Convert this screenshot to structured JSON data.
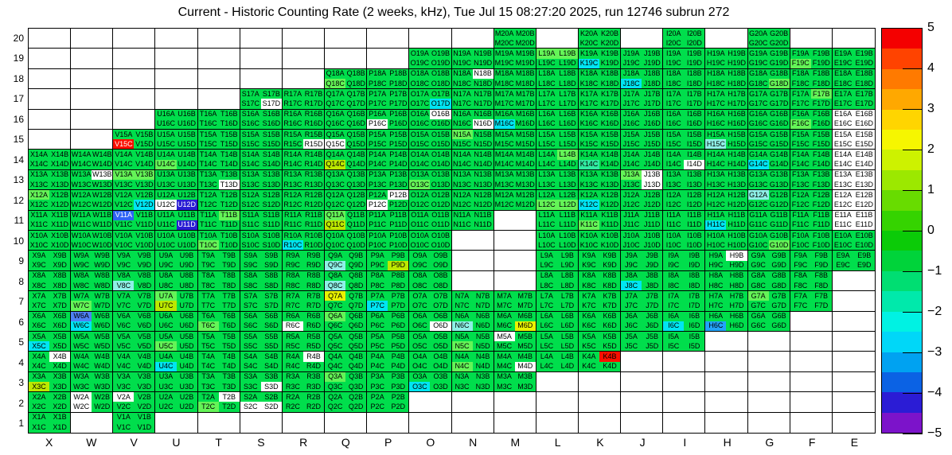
{
  "title": "Current - Historic Counting Rate (2 weeks, kHz), Tue Jul 15 08:27:20 2025, run 12746 subrun 272",
  "palette": {
    "g": "#00de4c",
    "lg": "#64f457",
    "yg": "#bce800",
    "y": "#eaf200",
    "mint": "#30eaa2",
    "lcy": "#8df0e6",
    "cy": "#00e5f2",
    "lbl": "#22a3fb",
    "bl": "#2f64f5",
    "bl2": "#4e80f5",
    "nv": "#2a1ed4",
    "red": "#fb0f00",
    "wh": "#ffffff"
  },
  "colorbar": {
    "bands": [
      "#f40000",
      "#ff4300",
      "#ff7a00",
      "#ffa800",
      "#ffd500",
      "#f6f600",
      "#cdf200",
      "#9ce800",
      "#68dc00",
      "#35d300",
      "#0bcb08",
      "#00d33a",
      "#00de72",
      "#00e9ab",
      "#00f2e3",
      "#00d7f8",
      "#00a2f1",
      "#0b62e4",
      "#2b1cd5",
      "#7c13ca"
    ],
    "ticks": [
      {
        "v": 5,
        "label": "5"
      },
      {
        "v": 4,
        "label": "4"
      },
      {
        "v": 3,
        "label": "3"
      },
      {
        "v": 2,
        "label": "2"
      },
      {
        "v": 1,
        "label": "1"
      },
      {
        "v": 0,
        "label": "0"
      },
      {
        "v": -1,
        "label": "−1"
      },
      {
        "v": -2,
        "label": "−2"
      },
      {
        "v": -3,
        "label": "−3"
      },
      {
        "v": -4,
        "label": "−4"
      },
      {
        "v": -5,
        "label": "−5"
      }
    ]
  },
  "chart_data": {
    "type": "heatmap",
    "title": "Current - Historic Counting Rate (2 weeks, kHz), Tue Jul 15 08:27:20 2025, run 12746 subrun 272",
    "unit": "kHz deviation (current minus historic)",
    "zlim": [
      -5,
      5
    ],
    "default_color": "g",
    "default_value": 0,
    "value_by_color": {
      "g": 0,
      "lg": 0.8,
      "yg": 1.5,
      "y": 2.2,
      "mint": -0.8,
      "lcy": -1.3,
      "cy": -1.8,
      "lbl": -2.5,
      "bl2": -3,
      "bl": -3.2,
      "nv": -4,
      "red": 5,
      "wh": null
    },
    "x_categories": [
      "X",
      "W",
      "V",
      "U",
      "T",
      "S",
      "R",
      "Q",
      "P",
      "O",
      "N",
      "M",
      "L",
      "K",
      "J",
      "I",
      "H",
      "G",
      "F",
      "E"
    ],
    "y_categories": [
      "20",
      "19",
      "18",
      "17",
      "16",
      "15",
      "14",
      "13",
      "12",
      "11",
      "10",
      "9",
      "8",
      "7",
      "6",
      "5",
      "4",
      "3",
      "2",
      "1"
    ],
    "sub_labels": [
      "A",
      "B",
      "C",
      "D"
    ],
    "rows": [
      {
        "y": 20,
        "cols": [
          "M",
          "K",
          "I",
          "G"
        ]
      },
      {
        "y": 19,
        "cols": [
          "O",
          "N",
          "M",
          "L",
          "K",
          "J",
          "I",
          "H",
          "G",
          "F",
          "E"
        ]
      },
      {
        "y": 18,
        "cols": [
          "Q",
          "P",
          "O",
          "N",
          "M",
          "L",
          "K",
          "J",
          "I",
          "H",
          "G",
          "F",
          "E"
        ]
      },
      {
        "y": 17,
        "cols": [
          "S",
          "R",
          "Q",
          "P",
          "O",
          "N",
          "M",
          "L",
          "K",
          "J",
          "I",
          "H",
          "G",
          "F",
          "E"
        ]
      },
      {
        "y": 16,
        "cols": [
          "U",
          "T",
          "S",
          "R",
          "Q",
          "P",
          "O",
          "N",
          "M",
          "L",
          "K",
          "J",
          "I",
          "H",
          "G",
          "F",
          "E"
        ]
      },
      {
        "y": 15,
        "cols": [
          "V",
          "U",
          "T",
          "S",
          "R",
          "Q",
          "P",
          "O",
          "N",
          "M",
          "L",
          "K",
          "J",
          "I",
          "H",
          "G",
          "F",
          "E"
        ]
      },
      {
        "y": 14,
        "cols": [
          "X",
          "W",
          "V",
          "U",
          "T",
          "S",
          "R",
          "Q",
          "P",
          "O",
          "N",
          "M",
          "L",
          "K",
          "J",
          "I",
          "H",
          "G",
          "F",
          "E"
        ]
      },
      {
        "y": 13,
        "cols": [
          "X",
          "W",
          "V",
          "U",
          "T",
          "S",
          "R",
          "Q",
          "P",
          "O",
          "N",
          "M",
          "L",
          "K",
          "J",
          "I",
          "H",
          "G",
          "F",
          "E"
        ]
      },
      {
        "y": 12,
        "cols": [
          "X",
          "W",
          "V",
          "U",
          "T",
          "S",
          "R",
          "Q",
          "P",
          "O",
          "N",
          "M",
          "L",
          "K",
          "J",
          "I",
          "H",
          "G",
          "F",
          "E"
        ]
      },
      {
        "y": 11,
        "cols": [
          "X",
          "W",
          "V",
          "U",
          "T",
          "S",
          "R",
          "Q",
          "P",
          "O",
          "N",
          "L",
          "K",
          "J",
          "I",
          "H",
          "G",
          "F",
          "E"
        ]
      },
      {
        "y": 10,
        "cols": [
          "X",
          "W",
          "V",
          "U",
          "T",
          "S",
          "R",
          "Q",
          "P",
          "O",
          "L",
          "K",
          "J",
          "I",
          "H",
          "G",
          "F",
          "E"
        ]
      },
      {
        "y": 9,
        "cols": [
          "X",
          "W",
          "V",
          "U",
          "T",
          "S",
          "R",
          "Q",
          "P",
          "O",
          "L",
          "K",
          "J",
          "I",
          "H",
          "G",
          "F",
          "E"
        ]
      },
      {
        "y": 8,
        "cols": [
          "X",
          "W",
          "V",
          "U",
          "T",
          "S",
          "R",
          "Q",
          "P",
          "O",
          "L",
          "K",
          "J",
          "I",
          "H",
          "G",
          "F"
        ]
      },
      {
        "y": 7,
        "cols": [
          "X",
          "W",
          "V",
          "U",
          "T",
          "S",
          "R",
          "Q",
          "P",
          "O",
          "N",
          "M",
          "L",
          "K",
          "J",
          "I",
          "H",
          "G",
          "F"
        ]
      },
      {
        "y": 6,
        "cols": [
          "X",
          "W",
          "V",
          "U",
          "T",
          "S",
          "R",
          "Q",
          "P",
          "O",
          "N",
          "M",
          "L",
          "K",
          "J",
          "I",
          "H",
          "G"
        ]
      },
      {
        "y": 5,
        "cols": [
          "X",
          "W",
          "V",
          "U",
          "T",
          "S",
          "R",
          "Q",
          "P",
          "O",
          "N",
          "M",
          "L",
          "K",
          "J",
          "I"
        ]
      },
      {
        "y": 4,
        "cols": [
          "X",
          "W",
          "V",
          "U",
          "T",
          "S",
          "R",
          "Q",
          "P",
          "O",
          "N",
          "M",
          "L",
          "K"
        ]
      },
      {
        "y": 3,
        "cols": [
          "X",
          "W",
          "V",
          "U",
          "T",
          "S",
          "R",
          "Q",
          "P",
          "O",
          "N",
          "M"
        ]
      },
      {
        "y": 2,
        "cols": [
          "X",
          "W",
          "V",
          "U",
          "T",
          "S",
          "R",
          "Q",
          "P"
        ]
      },
      {
        "y": 1,
        "cols": [
          "X",
          "V"
        ]
      }
    ],
    "cell_color_overrides": {
      "L19A": "lg",
      "L19B": "lg",
      "K19C": "cy",
      "F19C": "lg",
      "Q18C": "lg",
      "N18B": "wh",
      "J18C": "cy",
      "G18D": "lg",
      "S17D": "wh",
      "O17D": "cy",
      "F17B": "lg",
      "P16C": "wh",
      "O16B": "wh",
      "N16D": "wh",
      "M16C": "cy",
      "F16C": "lg",
      "E16A": "wh",
      "E16B": "wh",
      "E16C": "wh",
      "E16D": "wh",
      "V15C": "red",
      "R15D": "wh",
      "Q15C": "wh",
      "N15A": "lg",
      "H15C": "lcy",
      "E15A": "wh",
      "E15B": "wh",
      "E15C": "wh",
      "E15D": "wh",
      "U14C": "lg",
      "Q14C": "yg",
      "L14B": "lg",
      "K14C": "mint",
      "I14D": "wh",
      "G14C": "cy",
      "E14A": "wh",
      "E14B": "wh",
      "E14C": "wh",
      "E14D": "wh",
      "W13B": "wh",
      "V13A": "lg",
      "V13B": "lg",
      "T13D": "wh",
      "O13C": "lg",
      "J13A": "lg",
      "J13B": "wh",
      "J13D": "wh",
      "E13A": "wh",
      "E13B": "wh",
      "E13C": "wh",
      "E13D": "wh",
      "X12A": "lg",
      "V12D": "cy",
      "U12C": "wh",
      "U12D": "nv",
      "P12B": "wh",
      "P12C": "wh",
      "L12C": "lg",
      "L12D": "lg",
      "K12C": "cy",
      "G12A": "lcy",
      "E12A": "wh",
      "E12B": "wh",
      "E12C": "wh",
      "E12D": "wh",
      "V11A": "bl",
      "U11D": "nv",
      "T11B": "lg",
      "Q11A": "lg",
      "Q11C": "yg",
      "K11C": "lg",
      "H11C": "cy",
      "E11A": "wh",
      "E11B": "wh",
      "E11C": "wh",
      "E11D": "wh",
      "T10C": "lg",
      "R10C": "cy",
      "G10D": "lg",
      "Q9C": "lcy",
      "P9D": "yg",
      "H9B": "wh",
      "V8C": "lcy",
      "Q8C": "lcy",
      "J8C": "cy",
      "W7C": "lg",
      "U7A": "lg",
      "U7C": "yg",
      "Q7A": "y",
      "P7C": "cy",
      "G7A": "lg",
      "W6A": "bl2",
      "W6C": "cy",
      "T6C": "lg",
      "R6C": "wh",
      "Q6A": "lg",
      "O6D": "wh",
      "N6C": "lcy",
      "M6D": "y",
      "I6C": "cy",
      "H6C": "lbl",
      "X5C": "cy",
      "U5C": "lg",
      "N5C": "lg",
      "M5A": "wh",
      "X4B": "wh",
      "U4C": "cy",
      "R4B": "wh",
      "N4C": "lg",
      "M4D": "wh",
      "K4B": "red",
      "X3C": "yg",
      "S3D": "wh",
      "Q3A": "lg",
      "O3C": "cy",
      "W2A": "wh",
      "W2C": "wh",
      "V2A": "wh",
      "T2B": "wh",
      "T2C": "lg",
      "S2C": "wh",
      "S2D": "wh"
    },
    "white_text_cells": [
      "V15C",
      "V11A",
      "U12D",
      "U11D"
    ]
  }
}
